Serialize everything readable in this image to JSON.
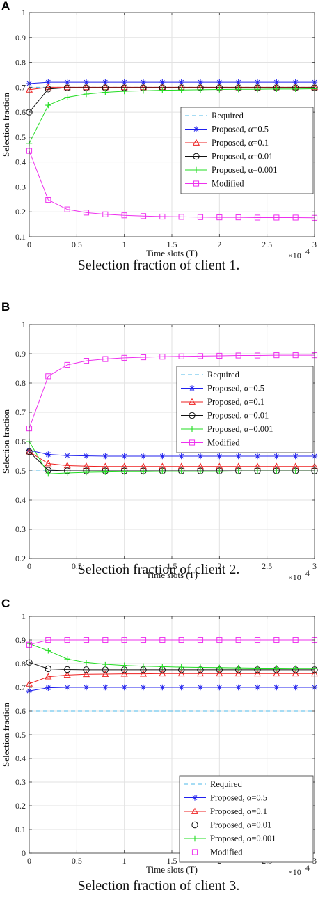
{
  "chart_data": [
    {
      "type": "line",
      "panel_label": "A",
      "caption": "Selection fraction of client 1.",
      "xlabel": "Time slots (T)",
      "ylabel": "Selection fraction",
      "x_exponent": "×10",
      "x_exponent_power": "4",
      "xlim": [
        0,
        3
      ],
      "ylim": [
        0.1,
        1
      ],
      "xticks": [
        "0",
        "0.5",
        "1",
        "1.5",
        "2",
        "2.5",
        "3"
      ],
      "yticks": [
        "0.1",
        "0.2",
        "0.3",
        "0.4",
        "0.5",
        "0.6",
        "0.7",
        "0.8",
        "0.9",
        "1"
      ],
      "grid": true,
      "legend_position": "center-right",
      "x": [
        0,
        0.2,
        0.4,
        0.6,
        0.8,
        1.0,
        1.2,
        1.4,
        1.6,
        1.8,
        2.0,
        2.2,
        2.4,
        2.6,
        2.8,
        3.0
      ],
      "series": [
        {
          "name": "Required",
          "color": "#4db8e8",
          "style": "dashed",
          "marker": "none",
          "values": [
            0.7,
            0.7,
            0.7,
            0.7,
            0.7,
            0.7,
            0.7,
            0.7,
            0.7,
            0.7,
            0.7,
            0.7,
            0.7,
            0.7,
            0.7,
            0.7
          ]
        },
        {
          "name": "Proposed, α=0.5",
          "color": "#2020ee",
          "style": "solid",
          "marker": "star",
          "values": [
            0.715,
            0.72,
            0.72,
            0.72,
            0.72,
            0.72,
            0.72,
            0.72,
            0.72,
            0.72,
            0.72,
            0.72,
            0.72,
            0.72,
            0.72,
            0.72
          ]
        },
        {
          "name": "Proposed, α=0.1",
          "color": "#ee2020",
          "style": "solid",
          "marker": "triangle",
          "values": [
            0.69,
            0.7,
            0.7,
            0.7,
            0.7,
            0.7,
            0.7,
            0.7,
            0.7,
            0.7,
            0.7,
            0.7,
            0.7,
            0.7,
            0.7,
            0.7
          ]
        },
        {
          "name": "Proposed, α=0.01",
          "color": "#111111",
          "style": "solid",
          "marker": "circle",
          "values": [
            0.6,
            0.693,
            0.698,
            0.698,
            0.698,
            0.698,
            0.698,
            0.698,
            0.698,
            0.698,
            0.698,
            0.698,
            0.698,
            0.698,
            0.698,
            0.698
          ]
        },
        {
          "name": "Proposed, α=0.001",
          "color": "#22dd22",
          "style": "solid",
          "marker": "plus",
          "values": [
            0.475,
            0.628,
            0.66,
            0.673,
            0.68,
            0.684,
            0.686,
            0.688,
            0.689,
            0.69,
            0.691,
            0.692,
            0.692,
            0.693,
            0.693,
            0.694
          ]
        },
        {
          "name": "Modified",
          "color": "#ee30ee",
          "style": "solid",
          "marker": "square",
          "values": [
            0.445,
            0.248,
            0.21,
            0.197,
            0.19,
            0.186,
            0.183,
            0.181,
            0.18,
            0.179,
            0.178,
            0.178,
            0.177,
            0.177,
            0.177,
            0.176
          ]
        }
      ]
    },
    {
      "type": "line",
      "panel_label": "B",
      "caption": "Selection fraction of client 2.",
      "xlabel": "Time slots (T)",
      "ylabel": "Selection fraction",
      "x_exponent": "×10",
      "x_exponent_power": "4",
      "xlim": [
        0,
        3
      ],
      "ylim": [
        0.2,
        1
      ],
      "xticks": [
        "0",
        "0.5",
        "1",
        "1.5",
        "2",
        "2.5",
        "3"
      ],
      "yticks": [
        "0.2",
        "0.3",
        "0.4",
        "0.5",
        "0.6",
        "0.7",
        "0.8",
        "0.9",
        "1"
      ],
      "grid": true,
      "legend_position": "center-right",
      "x": [
        0,
        0.2,
        0.4,
        0.6,
        0.8,
        1.0,
        1.2,
        1.4,
        1.6,
        1.8,
        2.0,
        2.2,
        2.4,
        2.6,
        2.8,
        3.0
      ],
      "series": [
        {
          "name": "Required",
          "color": "#4db8e8",
          "style": "dashed",
          "marker": "none",
          "values": [
            0.5,
            0.5,
            0.5,
            0.5,
            0.5,
            0.5,
            0.5,
            0.5,
            0.5,
            0.5,
            0.5,
            0.5,
            0.5,
            0.5,
            0.5,
            0.5
          ]
        },
        {
          "name": "Proposed, α=0.5",
          "color": "#2020ee",
          "style": "solid",
          "marker": "star",
          "values": [
            0.57,
            0.556,
            0.552,
            0.551,
            0.55,
            0.55,
            0.55,
            0.55,
            0.55,
            0.55,
            0.55,
            0.55,
            0.55,
            0.55,
            0.55,
            0.55
          ]
        },
        {
          "name": "Proposed, α=0.1",
          "color": "#ee2020",
          "style": "solid",
          "marker": "triangle",
          "values": [
            0.565,
            0.525,
            0.518,
            0.516,
            0.515,
            0.515,
            0.515,
            0.515,
            0.515,
            0.515,
            0.515,
            0.515,
            0.515,
            0.515,
            0.515,
            0.515
          ]
        },
        {
          "name": "Proposed, α=0.01",
          "color": "#111111",
          "style": "solid",
          "marker": "circle",
          "values": [
            0.565,
            0.502,
            0.5,
            0.5,
            0.5,
            0.5,
            0.5,
            0.5,
            0.5,
            0.5,
            0.5,
            0.5,
            0.5,
            0.5,
            0.5,
            0.5
          ]
        },
        {
          "name": "Proposed, α=0.001",
          "color": "#22dd22",
          "style": "solid",
          "marker": "plus",
          "values": [
            0.6,
            0.49,
            0.493,
            0.495,
            0.496,
            0.497,
            0.497,
            0.498,
            0.498,
            0.498,
            0.498,
            0.499,
            0.499,
            0.499,
            0.499,
            0.499
          ]
        },
        {
          "name": "Modified",
          "color": "#ee30ee",
          "style": "solid",
          "marker": "square",
          "values": [
            0.645,
            0.823,
            0.862,
            0.876,
            0.882,
            0.886,
            0.888,
            0.89,
            0.891,
            0.892,
            0.893,
            0.894,
            0.894,
            0.895,
            0.895,
            0.895
          ]
        }
      ]
    },
    {
      "type": "line",
      "panel_label": "C",
      "caption": "Selection fraction of client 3.",
      "xlabel": "Time slots (T)",
      "ylabel": "Selection fraction",
      "x_exponent": "×10",
      "x_exponent_power": "4",
      "xlim": [
        0,
        3
      ],
      "ylim": [
        0,
        1
      ],
      "xticks": [
        "0",
        "0.5",
        "1",
        "1.5",
        "2",
        "2.5",
        "3"
      ],
      "yticks": [
        "0",
        "0.1",
        "0.2",
        "0.3",
        "0.4",
        "0.5",
        "0.6",
        "0.7",
        "0.8",
        "0.9",
        "1"
      ],
      "grid": true,
      "legend_position": "lower-right",
      "x": [
        0,
        0.2,
        0.4,
        0.6,
        0.8,
        1.0,
        1.2,
        1.4,
        1.6,
        1.8,
        2.0,
        2.2,
        2.4,
        2.6,
        2.8,
        3.0
      ],
      "series": [
        {
          "name": "Required",
          "color": "#4db8e8",
          "style": "dashed",
          "marker": "none",
          "values": [
            0.6,
            0.6,
            0.6,
            0.6,
            0.6,
            0.6,
            0.6,
            0.6,
            0.6,
            0.6,
            0.6,
            0.6,
            0.6,
            0.6,
            0.6,
            0.6
          ]
        },
        {
          "name": "Proposed, α=0.5",
          "color": "#2020ee",
          "style": "solid",
          "marker": "star",
          "values": [
            0.685,
            0.698,
            0.7,
            0.7,
            0.7,
            0.7,
            0.7,
            0.7,
            0.7,
            0.7,
            0.7,
            0.7,
            0.7,
            0.7,
            0.7,
            0.7
          ]
        },
        {
          "name": "Proposed, α=0.1",
          "color": "#ee2020",
          "style": "solid",
          "marker": "triangle",
          "values": [
            0.715,
            0.745,
            0.752,
            0.755,
            0.756,
            0.757,
            0.757,
            0.758,
            0.758,
            0.758,
            0.758,
            0.758,
            0.758,
            0.758,
            0.758,
            0.758
          ]
        },
        {
          "name": "Proposed, α=0.01",
          "color": "#111111",
          "style": "solid",
          "marker": "circle",
          "values": [
            0.805,
            0.778,
            0.775,
            0.774,
            0.774,
            0.774,
            0.774,
            0.774,
            0.774,
            0.774,
            0.774,
            0.774,
            0.774,
            0.774,
            0.774,
            0.774
          ]
        },
        {
          "name": "Proposed, α=0.001",
          "color": "#22dd22",
          "style": "solid",
          "marker": "plus",
          "values": [
            0.885,
            0.855,
            0.82,
            0.805,
            0.797,
            0.792,
            0.789,
            0.787,
            0.785,
            0.784,
            0.783,
            0.782,
            0.781,
            0.781,
            0.78,
            0.78
          ]
        },
        {
          "name": "Modified",
          "color": "#ee30ee",
          "style": "solid",
          "marker": "square",
          "values": [
            0.88,
            0.9,
            0.9,
            0.9,
            0.9,
            0.9,
            0.9,
            0.9,
            0.9,
            0.9,
            0.9,
            0.9,
            0.9,
            0.9,
            0.9,
            0.9
          ]
        }
      ]
    }
  ]
}
